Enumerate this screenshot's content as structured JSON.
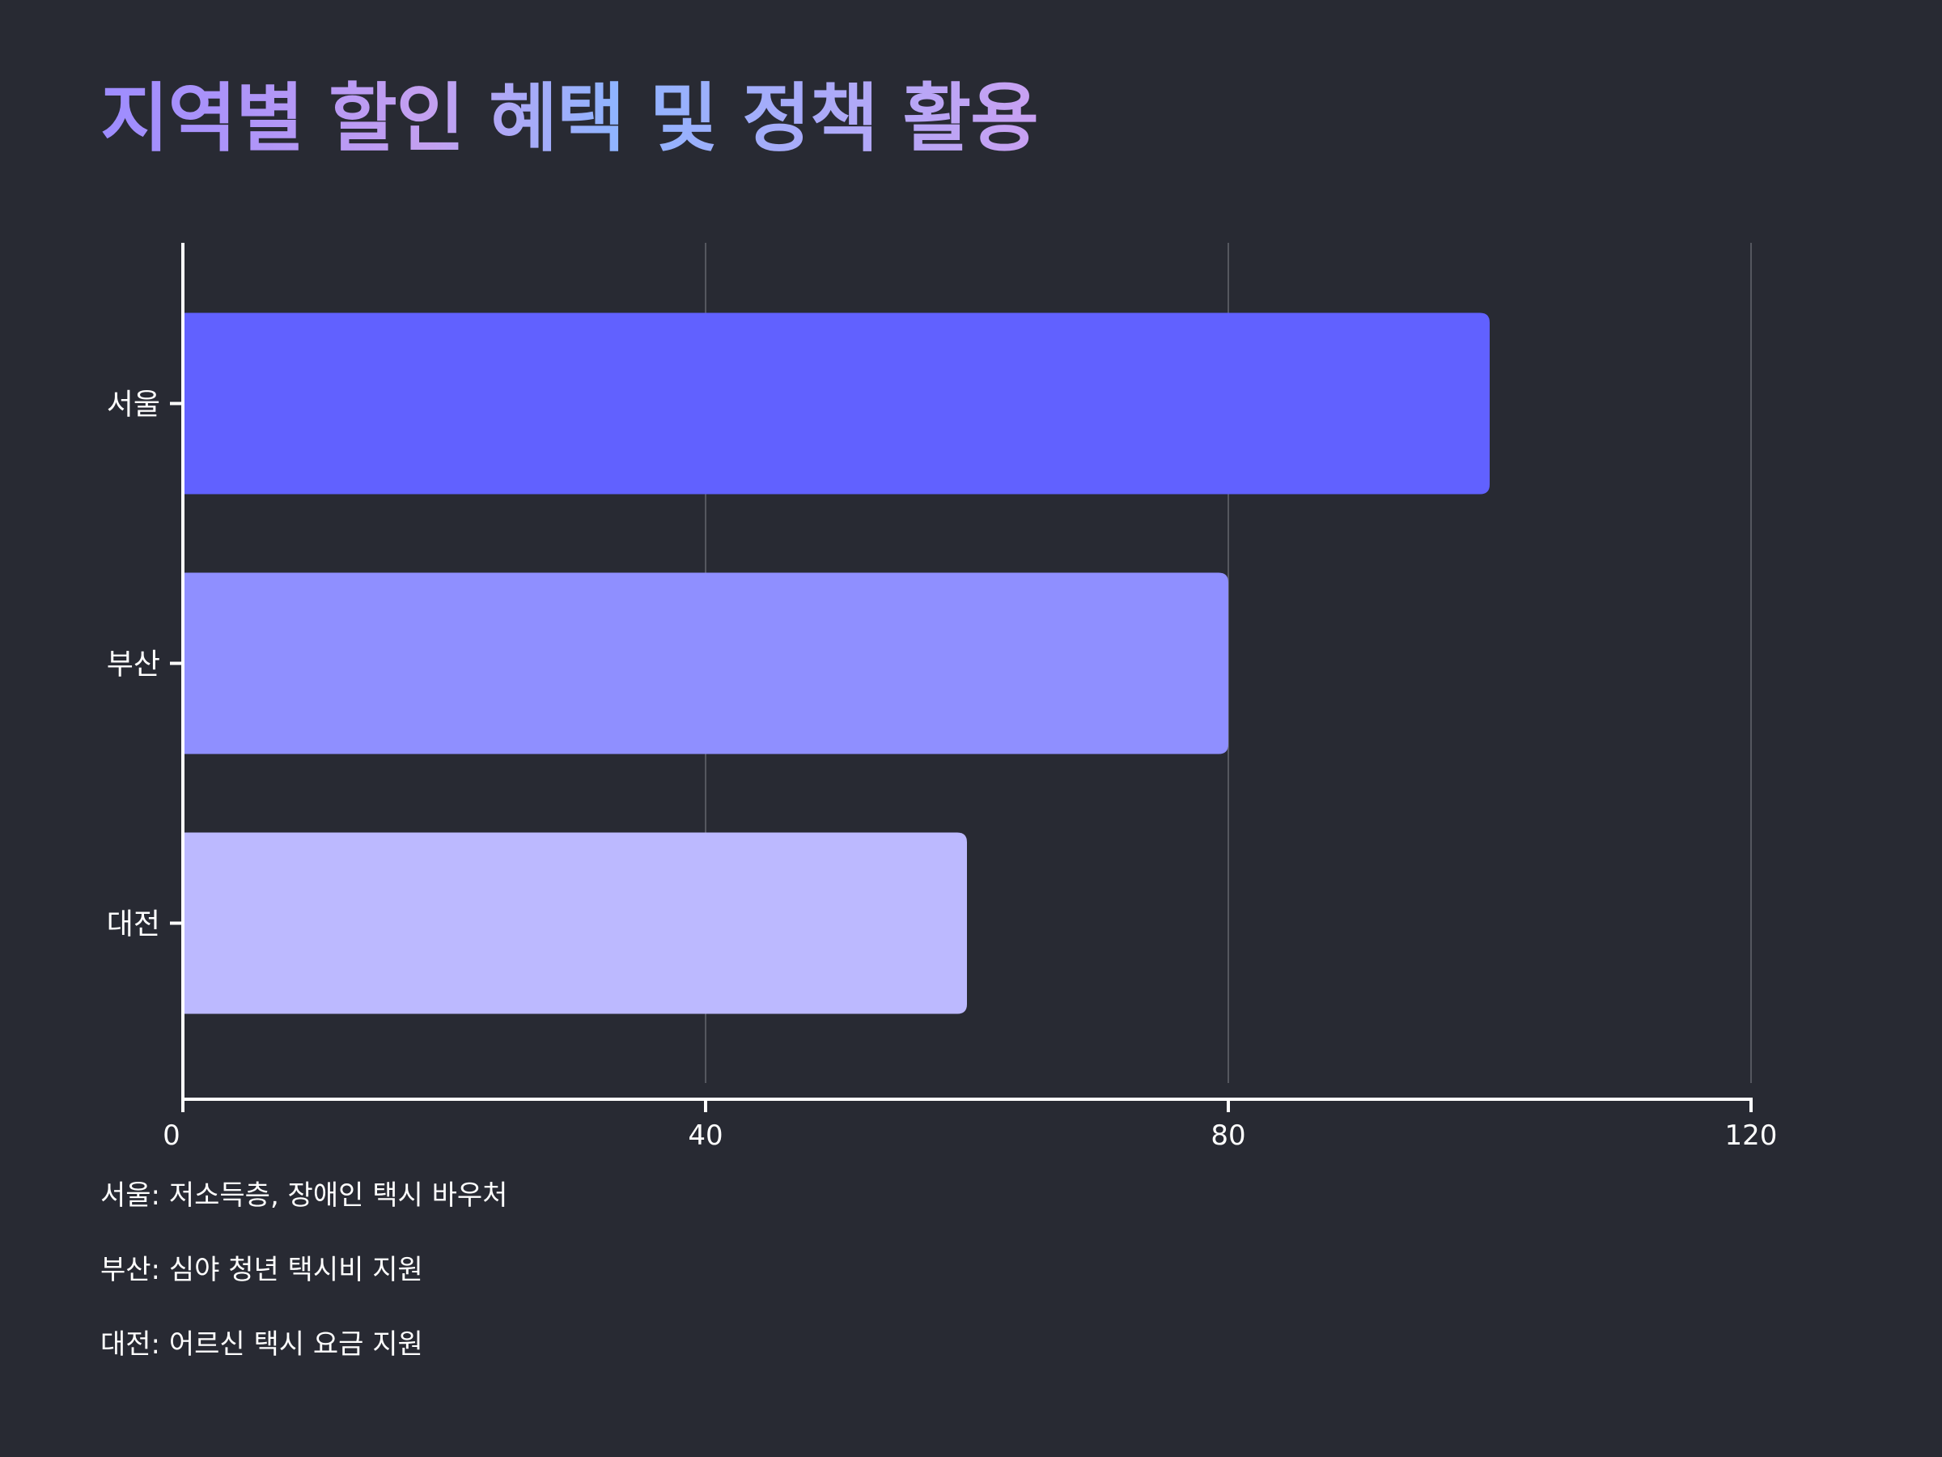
{
  "title": "지역별 할인 혜택 및 정책 활용",
  "chart_data": {
    "type": "bar",
    "orientation": "horizontal",
    "categories": [
      "서울",
      "부산",
      "대전"
    ],
    "values": [
      100,
      80,
      60
    ],
    "colors": [
      "#6161ff",
      "#8f8fff",
      "#bcb9ff"
    ],
    "xlim": [
      0,
      120
    ],
    "xticks": [
      0,
      40,
      80,
      120
    ],
    "grid": true,
    "title": "지역별 할인 혜택 및 정책 활용",
    "xlabel": "",
    "ylabel": ""
  },
  "notes": [
    "서울: 저소득층, 장애인 택시 바우처",
    "부산: 심야 청년 택시비 지원",
    "대전: 어르신 택시 요금 지원"
  ]
}
